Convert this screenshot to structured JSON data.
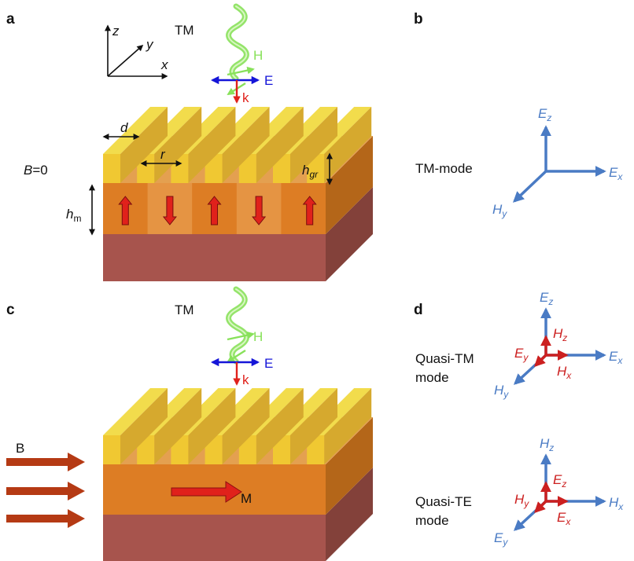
{
  "colors": {
    "gold_top": "#f2dc4c",
    "gold_front": "#f0c832",
    "gold_side": "#d6a92e",
    "magnet_front": "#dd7d24",
    "magnet_side": "#b46619",
    "magnet_top": "#e4a050",
    "domain_light": "#e79a4b",
    "substrate_front": "#a7544d",
    "substrate_side": "#83413a",
    "red_arrow": "#e0211b",
    "blue_axis": "#4a7bc4",
    "red_axis": "#cc2020",
    "wave_green": "#88e15a",
    "e_blue": "#1515d8",
    "bfield": "#b53a14"
  },
  "panels": {
    "a": {
      "label": "a",
      "tm_label": "TM",
      "h_label": "H",
      "e_label": "E",
      "k_label": "k",
      "b_zero_var": "B",
      "b_zero_val": "=0",
      "d_label": "d",
      "r_label": "r",
      "hgr_main": "h",
      "hgr_sub": "gr",
      "hm_main": "h",
      "hm_sub": "m",
      "axis_x": "x",
      "axis_y": "y",
      "axis_z": "z",
      "domains": [
        "up",
        "down",
        "up",
        "down",
        "up"
      ]
    },
    "b": {
      "label": "b",
      "mode_label": "TM-mode",
      "ez_main": "E",
      "ez_sub": "z",
      "ex_main": "E",
      "ex_sub": "x",
      "hy_main": "H",
      "hy_sub": "y"
    },
    "c": {
      "label": "c",
      "tm_label": "TM",
      "h_label": "H",
      "e_label": "E",
      "k_label": "k",
      "b_label": "B",
      "m_label": "M"
    },
    "d": {
      "label": "d",
      "qtm_line1": "Quasi-TM",
      "qtm_line2": "mode",
      "qte_line1": "Quasi-TE",
      "qte_line2": "mode",
      "qtm": {
        "ez_main": "E",
        "ez_sub": "z",
        "ex_main": "E",
        "ex_sub": "x",
        "hy_main": "H",
        "hy_sub": "y",
        "hz_main": "H",
        "hz_sub": "z",
        "ey_main": "E",
        "ey_sub": "y",
        "hx_main": "H",
        "hx_sub": "x"
      },
      "qte": {
        "hz_main": "H",
        "hz_sub": "z",
        "hx_main": "H",
        "hx_sub": "x",
        "ey_main": "E",
        "ey_sub": "y",
        "ez_main": "E",
        "ez_sub": "z",
        "hy_main": "H",
        "hy_sub": "y",
        "ex_main": "E",
        "ex_sub": "x"
      }
    }
  }
}
